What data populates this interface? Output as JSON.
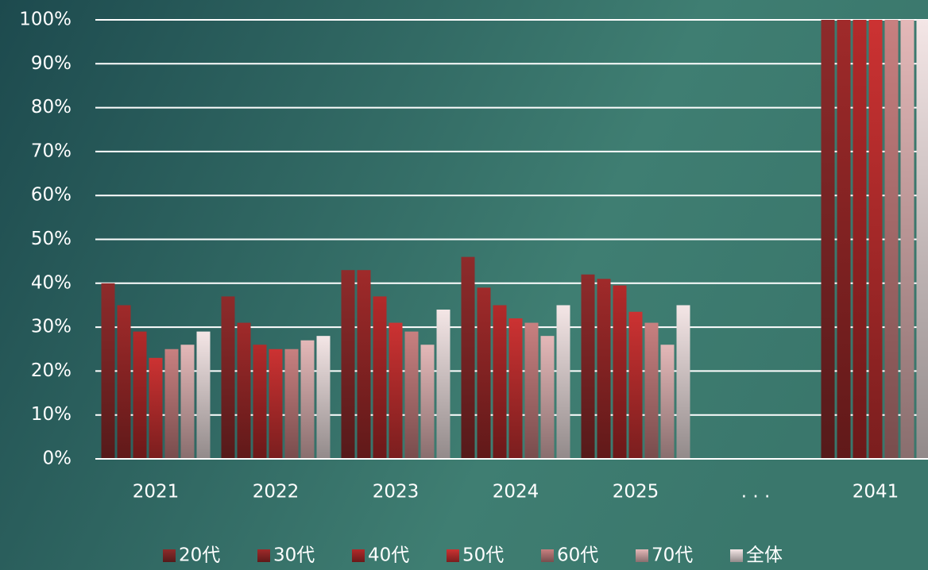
{
  "chart_data": {
    "type": "bar",
    "categories": [
      "2021",
      "2022",
      "2023",
      "2024",
      "2025",
      ". . .",
      "2041"
    ],
    "series": [
      {
        "name": "20代",
        "color": "#8e2b2b",
        "values": [
          40,
          37,
          43,
          46,
          42,
          null,
          100
        ]
      },
      {
        "name": "30代",
        "color": "#a02a2a",
        "values": [
          35,
          31,
          43,
          39,
          41,
          null,
          100
        ]
      },
      {
        "name": "40代",
        "color": "#b22a2a",
        "values": [
          29,
          26,
          37,
          35,
          39.5,
          null,
          100
        ]
      },
      {
        "name": "50代",
        "color": "#cc3232",
        "values": [
          23,
          25,
          31,
          32,
          33.5,
          null,
          100
        ]
      },
      {
        "name": "60代",
        "color": "#c88080",
        "values": [
          25,
          25,
          29,
          31,
          31,
          null,
          100
        ]
      },
      {
        "name": "70代",
        "color": "#e4b8b8",
        "values": [
          26,
          27,
          26,
          28,
          26,
          null,
          100
        ]
      },
      {
        "name": "全体",
        "color": "#f4e6e6",
        "values": [
          29,
          28,
          34,
          35,
          35,
          null,
          100
        ]
      }
    ],
    "ylim": [
      0,
      100
    ],
    "yticks": [
      {
        "value": 0,
        "label": "0%"
      },
      {
        "value": 10,
        "label": "10%"
      },
      {
        "value": 20,
        "label": "20%"
      },
      {
        "value": 30,
        "label": "30%"
      },
      {
        "value": 40,
        "label": "40%"
      },
      {
        "value": 50,
        "label": "50%"
      },
      {
        "value": 60,
        "label": "60%"
      },
      {
        "value": 70,
        "label": "70%"
      },
      {
        "value": 80,
        "label": "80%"
      },
      {
        "value": 90,
        "label": "90%"
      },
      {
        "value": 100,
        "label": "100%"
      }
    ],
    "grid": true,
    "legend": "bottom"
  }
}
